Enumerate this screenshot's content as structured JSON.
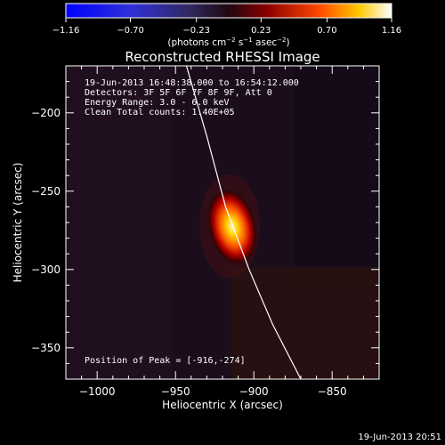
{
  "chart_data": {
    "type": "heatmap",
    "title": "Reconstructed RHESSI Image",
    "xlabel": "Heliocentric X (arcsec)",
    "ylabel": "Heliocentric Y (arcsec)",
    "xlim": [
      -1020,
      -820
    ],
    "ylim": [
      -370,
      -170
    ],
    "xticks": [
      -1000,
      -950,
      -900,
      -850
    ],
    "yticks": [
      -200,
      -250,
      -300,
      -350
    ],
    "colorbar": {
      "min": -1.16,
      "max": 1.16,
      "ticks": [
        -1.16,
        -0.7,
        -0.23,
        0.23,
        0.7,
        1.16
      ],
      "tick_labels": [
        "−1.16",
        "−0.70",
        "−0.23",
        "0.23",
        "0.70",
        "1.16"
      ],
      "unit_parts": [
        "(photons cm",
        "−2",
        " s",
        "−1",
        " asec",
        "−2",
        ")"
      ]
    },
    "annotations": [
      "19-Jun-2013 16:48:38.000 to 16:54:12.000",
      "Detectors: 3F 5F 6F 7F 8F 9F, Att 0",
      "Energy Range: 3.0 - 6.0 keV",
      "Clean    Total counts: 1.40E+05"
    ],
    "peak_label": "Position of Peak = [-916,-274]",
    "peak": {
      "x": -916,
      "y": -274
    },
    "limb_curve": [
      [
        -943,
        -170
      ],
      [
        -930,
        -215
      ],
      [
        -918,
        -260
      ],
      [
        -903,
        -300
      ],
      [
        -888,
        -335
      ],
      [
        -870,
        -370
      ]
    ],
    "timestamp": "19-Jun-2013 20:51"
  }
}
